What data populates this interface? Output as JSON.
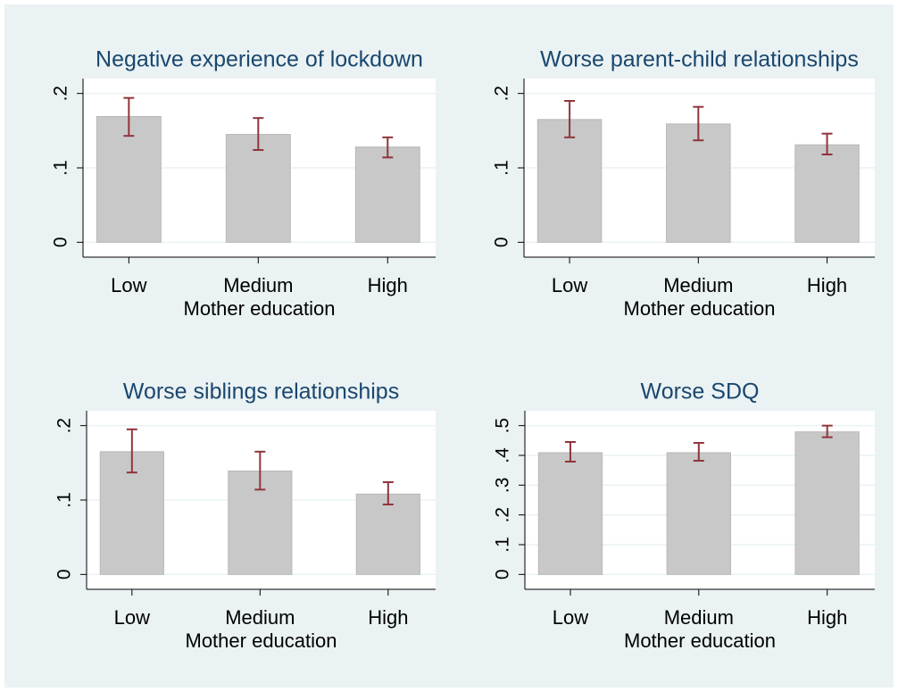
{
  "chart_data": [
    {
      "type": "bar",
      "title": "Negative experience of lockdown",
      "xlabel": "Mother education",
      "categories": [
        "Low",
        "Medium",
        "High"
      ],
      "values": [
        0.169,
        0.145,
        0.128
      ],
      "ci_low": [
        0.143,
        0.124,
        0.114
      ],
      "ci_high": [
        0.194,
        0.167,
        0.141
      ],
      "color": "#c8c8c8",
      "error_color": "#90353b",
      "ylim": [
        -0.02,
        0.22
      ],
      "yticks": [
        0,
        {
          "value": 0.1,
          "label": ".1"
        },
        {
          "value": 0.2,
          "label": ".2"
        }
      ],
      "grid": true
    },
    {
      "type": "bar",
      "title": "Worse parent-child relationships",
      "xlabel": "Mother education",
      "categories": [
        "Low",
        "Medium",
        "High"
      ],
      "values": [
        0.165,
        0.159,
        0.131
      ],
      "ci_low": [
        0.141,
        0.137,
        0.118
      ],
      "ci_high": [
        0.19,
        0.182,
        0.146
      ],
      "color": "#c8c8c8",
      "error_color": "#90353b",
      "ylim": [
        -0.02,
        0.22
      ],
      "yticks": [
        0,
        {
          "value": 0.1,
          "label": ".1"
        },
        {
          "value": 0.2,
          "label": ".2"
        }
      ],
      "grid": true
    },
    {
      "type": "bar",
      "title": "Worse siblings relationships",
      "xlabel": "Mother education",
      "categories": [
        "Low",
        "Medium",
        "High"
      ],
      "values": [
        0.165,
        0.139,
        0.108
      ],
      "ci_low": [
        0.137,
        0.114,
        0.094
      ],
      "ci_high": [
        0.195,
        0.165,
        0.124
      ],
      "color": "#c8c8c8",
      "error_color": "#90353b",
      "ylim": [
        -0.02,
        0.22
      ],
      "yticks": [
        0,
        {
          "value": 0.1,
          "label": ".1"
        },
        {
          "value": 0.2,
          "label": ".2"
        }
      ],
      "grid": true
    },
    {
      "type": "bar",
      "title": "Worse SDQ",
      "xlabel": "Mother education",
      "categories": [
        "Low",
        "Medium",
        "High"
      ],
      "values": [
        0.409,
        0.409,
        0.479
      ],
      "ci_low": [
        0.379,
        0.382,
        0.461
      ],
      "ci_high": [
        0.445,
        0.442,
        0.5
      ],
      "color": "#c8c8c8",
      "error_color": "#90353b",
      "ylim": [
        -0.05,
        0.55
      ],
      "yticks": [
        0,
        {
          "value": 0.1,
          "label": ".1"
        },
        {
          "value": 0.2,
          "label": ".2"
        },
        {
          "value": 0.3,
          "label": ".3"
        },
        {
          "value": 0.4,
          "label": ".4"
        },
        {
          "value": 0.5,
          "label": ".5"
        }
      ],
      "grid": true
    }
  ]
}
